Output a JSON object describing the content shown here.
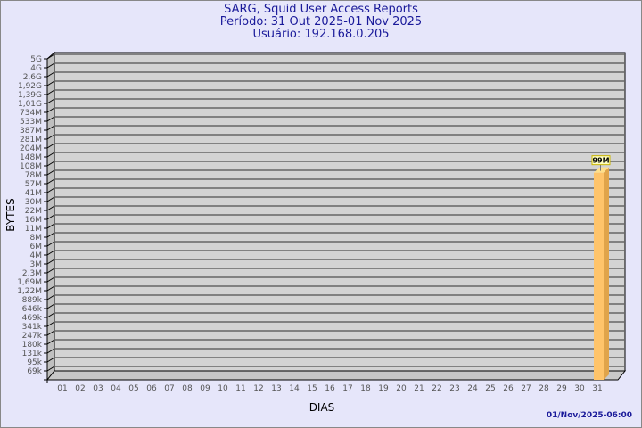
{
  "title": "SARG, Squid User Access Reports",
  "period": "Período: 31 Out 2025-01 Nov 2025",
  "user": "Usuário: 192.168.0.205",
  "timestamp": "01/Nov/2025-06:00",
  "chart_data": {
    "type": "bar",
    "xlabel": "DIAS",
    "ylabel": "BYTES",
    "y_scale": "log",
    "categories": [
      "01",
      "02",
      "03",
      "04",
      "05",
      "06",
      "07",
      "08",
      "09",
      "10",
      "11",
      "12",
      "13",
      "14",
      "15",
      "16",
      "17",
      "18",
      "19",
      "20",
      "21",
      "22",
      "23",
      "24",
      "25",
      "26",
      "27",
      "28",
      "29",
      "30",
      "31"
    ],
    "y_ticks": [
      "5G",
      "4G",
      "2,6G",
      "1,92G",
      "1,39G",
      "1,01G",
      "734M",
      "533M",
      "387M",
      "281M",
      "204M",
      "148M",
      "108M",
      "78M",
      "57M",
      "41M",
      "30M",
      "22M",
      "16M",
      "11M",
      "8M",
      "6M",
      "4M",
      "3M",
      "2,3M",
      "1,69M",
      "1,22M",
      "889k",
      "646k",
      "469k",
      "341k",
      "247k",
      "180k",
      "131k",
      "95k",
      "69k"
    ],
    "values": [
      null,
      null,
      null,
      null,
      null,
      null,
      null,
      null,
      null,
      null,
      null,
      null,
      null,
      null,
      null,
      null,
      null,
      null,
      null,
      null,
      null,
      null,
      null,
      null,
      null,
      null,
      null,
      null,
      null,
      null,
      99000000
    ],
    "data_labels": {
      "31": "99M"
    },
    "grid": true,
    "colors": {
      "panel": "#d3d3d3",
      "bar_front": "#ffc46a",
      "bar_side": "#e0a44a",
      "bar_top": "#ffe08a",
      "label_bg": "#ffffc0",
      "label_border": "#c8b400"
    }
  }
}
